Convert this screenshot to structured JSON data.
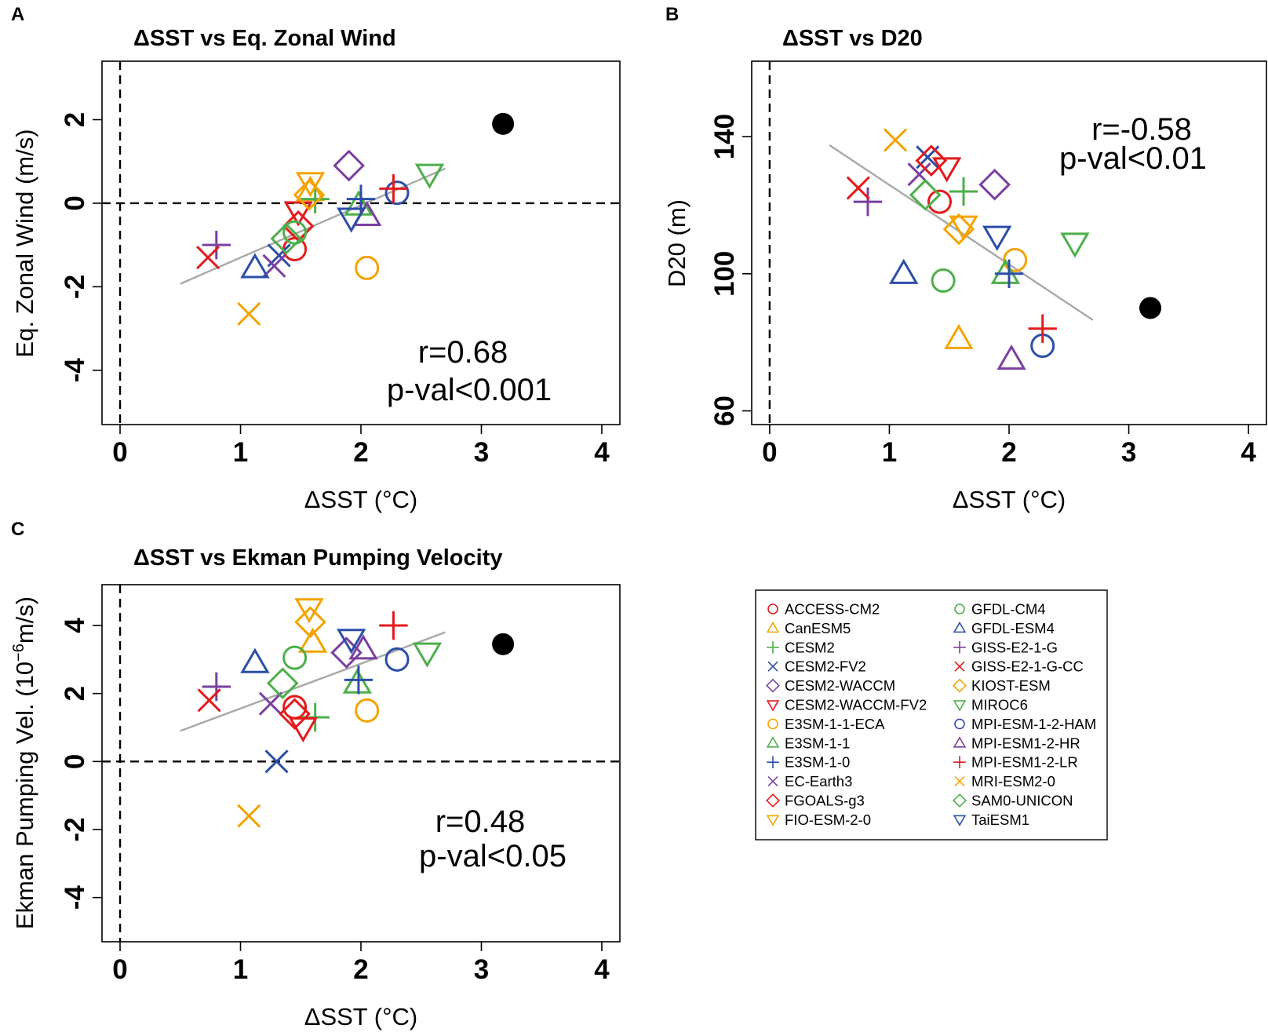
{
  "models": [
    {
      "name": "ACCESS-CM2",
      "color": "#e41a1c",
      "marker": "circle"
    },
    {
      "name": "CanESM5",
      "color": "#f4a300",
      "marker": "triangle-up"
    },
    {
      "name": "CESM2",
      "color": "#4daf4a",
      "marker": "plus"
    },
    {
      "name": "CESM2-FV2",
      "color": "#2c4ea8",
      "marker": "x"
    },
    {
      "name": "CESM2-WACCM",
      "color": "#7b3fa0",
      "marker": "diamond"
    },
    {
      "name": "CESM2-WACCM-FV2",
      "color": "#e41a1c",
      "marker": "triangle-down"
    },
    {
      "name": "E3SM-1-1-ECA",
      "color": "#f4a300",
      "marker": "circle"
    },
    {
      "name": "E3SM-1-1",
      "color": "#4daf4a",
      "marker": "triangle-up"
    },
    {
      "name": "E3SM-1-0",
      "color": "#2c4ea8",
      "marker": "plus"
    },
    {
      "name": "EC-Earth3",
      "color": "#7b3fa0",
      "marker": "x"
    },
    {
      "name": "FGOALS-g3",
      "color": "#e41a1c",
      "marker": "diamond"
    },
    {
      "name": "FIO-ESM-2-0",
      "color": "#f4a300",
      "marker": "triangle-down"
    },
    {
      "name": "GFDL-CM4",
      "color": "#4daf4a",
      "marker": "circle"
    },
    {
      "name": "GFDL-ESM4",
      "color": "#2c4ea8",
      "marker": "triangle-up"
    },
    {
      "name": "GISS-E2-1-G",
      "color": "#7b3fa0",
      "marker": "plus"
    },
    {
      "name": "GISS-E2-1-G-CC",
      "color": "#e41a1c",
      "marker": "x"
    },
    {
      "name": "KIOST-ESM",
      "color": "#f4a300",
      "marker": "diamond"
    },
    {
      "name": "MIROC6",
      "color": "#4daf4a",
      "marker": "triangle-down"
    },
    {
      "name": "MPI-ESM-1-2-HAM",
      "color": "#2c4ea8",
      "marker": "circle"
    },
    {
      "name": "MPI-ESM1-2-HR",
      "color": "#7b3fa0",
      "marker": "triangle-up"
    },
    {
      "name": "MPI-ESM1-2-LR",
      "color": "#e41a1c",
      "marker": "plus"
    },
    {
      "name": "MRI-ESM2-0",
      "color": "#f4a300",
      "marker": "x"
    },
    {
      "name": "SAM0-UNICON",
      "color": "#4daf4a",
      "marker": "diamond"
    },
    {
      "name": "TaiESM1",
      "color": "#2c4ea8",
      "marker": "triangle-down"
    }
  ],
  "chart_data": [
    {
      "type": "scatter",
      "panel": "A",
      "title": "ΔSST  vs Eq. Zonal Wind",
      "xlabel": "ΔSST (°C)",
      "ylabel": "Eq. Zonal Wind (m/s)",
      "xlim": [
        -0.15,
        4.15
      ],
      "ylim": [
        -5.3,
        3.4
      ],
      "xticks": [
        0,
        1,
        2,
        3,
        4
      ],
      "xtick_labels": [
        "0",
        "1",
        "2",
        "3",
        "4"
      ],
      "yticks": [
        -4,
        -2,
        0,
        2
      ],
      "ytick_labels": [
        "-4",
        "-2",
        "0",
        "2"
      ],
      "ref_lines": {
        "x": 0,
        "y": 0
      },
      "stat_r": "r=0.68",
      "stat_p": "p-val<0.001",
      "fit": {
        "x": [
          0.5,
          2.7
        ],
        "y": [
          -1.93,
          0.83
        ]
      },
      "highlight": {
        "x": 3.18,
        "y": 1.9
      },
      "points": [
        {
          "x": 1.45,
          "y": -1.1
        },
        {
          "x": 1.58,
          "y": 0.3
        },
        {
          "x": 1.62,
          "y": 0.1
        },
        {
          "x": 1.32,
          "y": -1.25
        },
        {
          "x": 1.9,
          "y": 0.9
        },
        {
          "x": 1.48,
          "y": -0.2
        },
        {
          "x": 2.05,
          "y": -1.55
        },
        {
          "x": 1.98,
          "y": -0.05
        },
        {
          "x": 2.0,
          "y": 0.1
        },
        {
          "x": 1.28,
          "y": -1.5
        },
        {
          "x": 1.48,
          "y": -0.55
        },
        {
          "x": 1.58,
          "y": 0.5
        },
        {
          "x": 1.45,
          "y": -0.7
        },
        {
          "x": 1.12,
          "y": -1.55
        },
        {
          "x": 0.8,
          "y": -1.0
        },
        {
          "x": 0.73,
          "y": -1.3
        },
        {
          "x": 1.57,
          "y": 0.2
        },
        {
          "x": 2.57,
          "y": 0.7
        },
        {
          "x": 2.3,
          "y": 0.25
        },
        {
          "x": 2.05,
          "y": -0.3
        },
        {
          "x": 2.27,
          "y": 0.35
        },
        {
          "x": 1.07,
          "y": -2.65
        },
        {
          "x": 1.38,
          "y": -0.85
        },
        {
          "x": 1.92,
          "y": -0.35
        }
      ]
    },
    {
      "type": "scatter",
      "panel": "B",
      "title": "ΔSST vs D20",
      "xlabel": "ΔSST (°C)",
      "ylabel": "D20 (m)",
      "xlim": [
        -0.15,
        4.15
      ],
      "ylim": [
        56,
        162
      ],
      "xticks": [
        0,
        1,
        2,
        3,
        4
      ],
      "xtick_labels": [
        "0",
        "1",
        "2",
        "3",
        "4"
      ],
      "yticks": [
        60,
        100,
        140
      ],
      "ytick_labels": [
        "60",
        "100",
        "140"
      ],
      "ref_lines": {
        "x": 0,
        "y": null
      },
      "stat_r": "r=-0.58",
      "stat_p": "p-val<0.01",
      "fit": {
        "x": [
          0.5,
          2.7
        ],
        "y": [
          137.5,
          86.5
        ]
      },
      "highlight": {
        "x": 3.18,
        "y": 90
      },
      "points": [
        {
          "x": 1.42,
          "y": 121
        },
        {
          "x": 1.58,
          "y": 81
        },
        {
          "x": 1.62,
          "y": 124
        },
        {
          "x": 1.32,
          "y": 134
        },
        {
          "x": 1.88,
          "y": 126
        },
        {
          "x": 1.48,
          "y": 131
        },
        {
          "x": 2.05,
          "y": 104
        },
        {
          "x": 1.97,
          "y": 100
        },
        {
          "x": 2.0,
          "y": 100
        },
        {
          "x": 1.25,
          "y": 129
        },
        {
          "x": 1.35,
          "y": 133
        },
        {
          "x": 1.62,
          "y": 114
        },
        {
          "x": 1.45,
          "y": 98
        },
        {
          "x": 1.12,
          "y": 100
        },
        {
          "x": 0.82,
          "y": 121
        },
        {
          "x": 0.74,
          "y": 125
        },
        {
          "x": 1.58,
          "y": 113
        },
        {
          "x": 2.55,
          "y": 109
        },
        {
          "x": 2.28,
          "y": 79
        },
        {
          "x": 2.02,
          "y": 75
        },
        {
          "x": 2.28,
          "y": 84
        },
        {
          "x": 1.05,
          "y": 139
        },
        {
          "x": 1.3,
          "y": 123
        },
        {
          "x": 1.9,
          "y": 111
        }
      ]
    },
    {
      "type": "scatter",
      "panel": "C",
      "title": "ΔSST vs Ekman Pumping Velocity",
      "xlabel": "ΔSST (°C)",
      "ylabel": "Ekman Pumping Vel. (10^-6 m/s)",
      "ylabel_main": "Ekman Pumping Vel. (10",
      "ylabel_sup": "−6",
      "ylabel_tail": "m/s)",
      "xlim": [
        -0.15,
        4.15
      ],
      "ylim": [
        -5.3,
        5.2
      ],
      "xticks": [
        0,
        1,
        2,
        3,
        4
      ],
      "xtick_labels": [
        "0",
        "1",
        "2",
        "3",
        "4"
      ],
      "yticks": [
        -4,
        -2,
        0,
        2,
        4
      ],
      "ytick_labels": [
        "-4",
        "-2",
        "0",
        "2",
        "4"
      ],
      "ref_lines": {
        "x": 0,
        "y": 0
      },
      "stat_r": "r=0.48",
      "stat_p": "p-val<0.05",
      "fit": {
        "x": [
          0.5,
          2.7
        ],
        "y": [
          0.9,
          3.8
        ]
      },
      "highlight": {
        "x": 3.18,
        "y": 3.45
      },
      "points": [
        {
          "x": 1.45,
          "y": 1.6
        },
        {
          "x": 1.6,
          "y": 3.5
        },
        {
          "x": 1.62,
          "y": 1.3
        },
        {
          "x": 1.3,
          "y": 0.0
        },
        {
          "x": 1.88,
          "y": 3.2
        },
        {
          "x": 1.52,
          "y": 1.0
        },
        {
          "x": 2.05,
          "y": 1.5
        },
        {
          "x": 1.97,
          "y": 2.3
        },
        {
          "x": 1.98,
          "y": 2.4
        },
        {
          "x": 1.25,
          "y": 1.7
        },
        {
          "x": 1.45,
          "y": 1.4
        },
        {
          "x": 1.57,
          "y": 4.5
        },
        {
          "x": 1.45,
          "y": 3.05
        },
        {
          "x": 1.12,
          "y": 2.9
        },
        {
          "x": 0.8,
          "y": 2.2
        },
        {
          "x": 0.74,
          "y": 1.8
        },
        {
          "x": 1.58,
          "y": 4.1
        },
        {
          "x": 2.55,
          "y": 3.2
        },
        {
          "x": 2.3,
          "y": 3.0
        },
        {
          "x": 2.02,
          "y": 3.3
        },
        {
          "x": 2.27,
          "y": 4.0
        },
        {
          "x": 1.07,
          "y": -1.6
        },
        {
          "x": 1.35,
          "y": 2.3
        },
        {
          "x": 1.92,
          "y": 3.6
        }
      ]
    }
  ]
}
